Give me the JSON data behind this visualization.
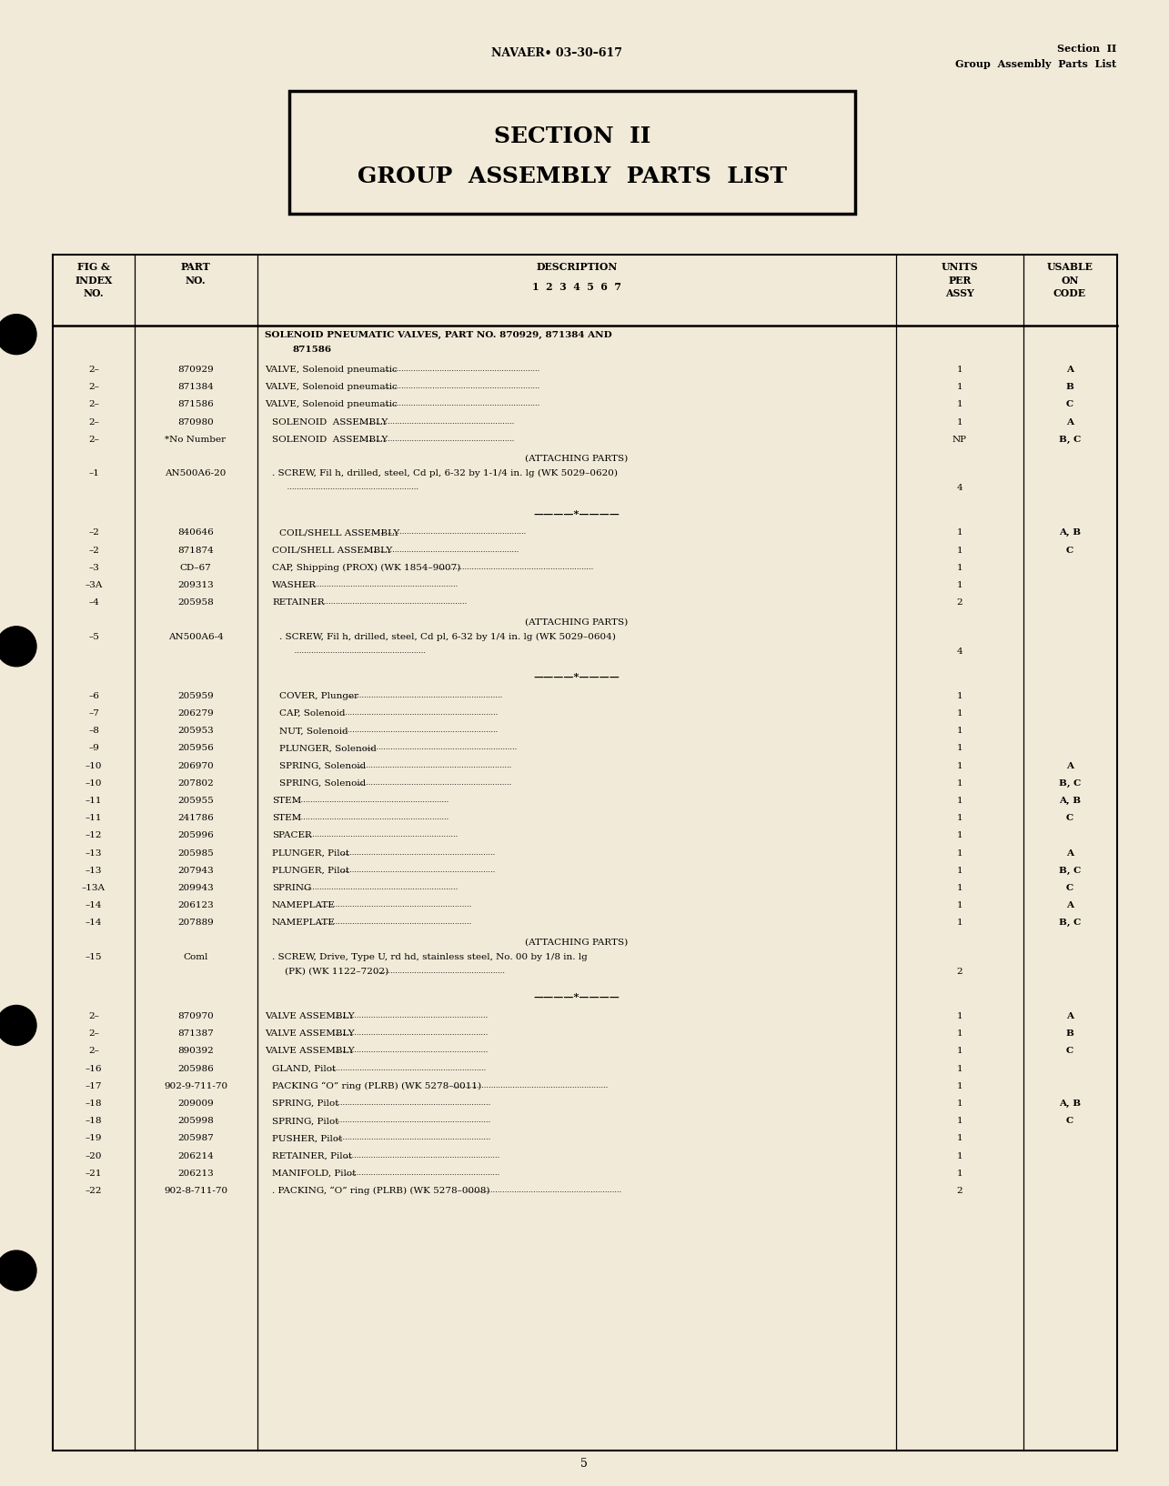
{
  "bg_color": "#f2ead8",
  "page_number": "5",
  "header_center": "NAVAER• 03–30–617",
  "header_right_line1": "Section  II",
  "header_right_line2": "Group  Assembly  Parts  List",
  "section_title_line1": "SECTION  II",
  "section_title_line2": "GROUP  ASSEMBLY  PARTS  LIST",
  "col_headers_fig": "FIG &\nINDEX\nNO.",
  "col_headers_part": "PART\nNO.",
  "col_headers_desc1": "DESCRIPTION",
  "col_headers_desc2": "1  2  3  4  5  6  7",
  "col_headers_units": "UNITS\nPER\nASSY",
  "col_headers_code": "USABLE\nON\nCODE",
  "intro_line1": "SOLENOID PNEUMATIC VALVES, PART NO. 870929, 871384 AND",
  "intro_line2": "871586",
  "rows": [
    {
      "fig": "2–",
      "part": "870929",
      "indent": 0,
      "desc": "VALVE, Solenoid pneumatic",
      "units": "1",
      "code": "A",
      "type": "data"
    },
    {
      "fig": "2–",
      "part": "871384",
      "indent": 0,
      "desc": "VALVE, Solenoid pneumatic",
      "units": "1",
      "code": "B",
      "type": "data"
    },
    {
      "fig": "2–",
      "part": "871586",
      "indent": 0,
      "desc": "VALVE, Solenoid pneumatic",
      "units": "1",
      "code": "C",
      "type": "data"
    },
    {
      "fig": "2–",
      "part": "870980",
      "indent": 1,
      "desc": "SOLENOID  ASSEMBLY",
      "units": "1",
      "code": "A",
      "type": "data"
    },
    {
      "fig": "2–",
      "part": "*No Number",
      "indent": 1,
      "desc": "SOLENOID  ASSEMBLY",
      "units": "NP",
      "code": "B, C",
      "type": "data"
    },
    {
      "fig": "",
      "part": "",
      "indent": 0,
      "desc": "(ATTACHING PARTS)",
      "units": "",
      "code": "",
      "type": "attaching"
    },
    {
      "fig": "–1",
      "part": "AN500A6-20",
      "indent": 1,
      "desc": ". SCREW, Fil h, drilled, steel, Cd pl, 6-32 by 1-1/4 in. lg (WK 5029–0620)",
      "units": "4",
      "code": "",
      "type": "multi"
    },
    {
      "fig": "",
      "part": "",
      "indent": 0,
      "desc": "",
      "units": "",
      "code": "",
      "type": "separator"
    },
    {
      "fig": "–2",
      "part": "840646",
      "indent": 2,
      "desc": "COIL/SHELL ASSEMBLY",
      "units": "1",
      "code": "A, B",
      "type": "data"
    },
    {
      "fig": "–2",
      "part": "871874",
      "indent": 1,
      "desc": "COIL/SHELL ASSEMBLY",
      "units": "1",
      "code": "C",
      "type": "data"
    },
    {
      "fig": "–3",
      "part": "CD–67",
      "indent": 1,
      "desc": "CAP, Shipping (PROX) (WK 1854–9007)",
      "units": "1",
      "code": "",
      "type": "data"
    },
    {
      "fig": "–3A",
      "part": "209313",
      "indent": 1,
      "desc": "WASHER",
      "units": "1",
      "code": "",
      "type": "data"
    },
    {
      "fig": "–4",
      "part": "205958",
      "indent": 1,
      "desc": "RETAINER",
      "units": "2",
      "code": "",
      "type": "data"
    },
    {
      "fig": "",
      "part": "",
      "indent": 0,
      "desc": "(ATTACHING PARTS)",
      "units": "",
      "code": "",
      "type": "attaching"
    },
    {
      "fig": "–5",
      "part": "AN500A6-4",
      "indent": 2,
      "desc": ". SCREW, Fil h, drilled, steel, Cd pl, 6-32 by 1/4 in. lg (WK 5029–0604)",
      "units": "4",
      "code": "",
      "type": "multi"
    },
    {
      "fig": "",
      "part": "",
      "indent": 0,
      "desc": "",
      "units": "",
      "code": "",
      "type": "separator"
    },
    {
      "fig": "–6",
      "part": "205959",
      "indent": 2,
      "desc": "COVER, Plunger",
      "units": "1",
      "code": "",
      "type": "data"
    },
    {
      "fig": "–7",
      "part": "206279",
      "indent": 2,
      "desc": "CAP, Solenoid",
      "units": "1",
      "code": "",
      "type": "data"
    },
    {
      "fig": "–8",
      "part": "205953",
      "indent": 2,
      "desc": "NUT, Solenoid",
      "units": "1",
      "code": "",
      "type": "data"
    },
    {
      "fig": "–9",
      "part": "205956",
      "indent": 2,
      "desc": "PLUNGER, Solenoid",
      "units": "1",
      "code": "",
      "type": "data"
    },
    {
      "fig": "–10",
      "part": "206970",
      "indent": 2,
      "desc": "SPRING, Solenoid",
      "units": "1",
      "code": "A",
      "type": "data"
    },
    {
      "fig": "–10",
      "part": "207802",
      "indent": 2,
      "desc": "SPRING, Solenoid",
      "units": "1",
      "code": "B, C",
      "type": "data"
    },
    {
      "fig": "–11",
      "part": "205955",
      "indent": 1,
      "desc": "STEM",
      "units": "1",
      "code": "A, B",
      "type": "data"
    },
    {
      "fig": "–11",
      "part": "241786",
      "indent": 1,
      "desc": "STEM",
      "units": "1",
      "code": "C",
      "type": "data"
    },
    {
      "fig": "–12",
      "part": "205996",
      "indent": 1,
      "desc": "SPACER",
      "units": "1",
      "code": "",
      "type": "data"
    },
    {
      "fig": "–13",
      "part": "205985",
      "indent": 1,
      "desc": "PLUNGER, Pilot",
      "units": "1",
      "code": "A",
      "type": "data"
    },
    {
      "fig": "–13",
      "part": "207943",
      "indent": 1,
      "desc": "PLUNGER, Pilot",
      "units": "1",
      "code": "B, C",
      "type": "data"
    },
    {
      "fig": "–13A",
      "part": "209943",
      "indent": 1,
      "desc": "SPRING",
      "units": "1",
      "code": "C",
      "type": "data"
    },
    {
      "fig": "–14",
      "part": "206123",
      "indent": 1,
      "desc": "NAMEPLATE",
      "units": "1",
      "code": "A",
      "type": "data"
    },
    {
      "fig": "–14",
      "part": "207889",
      "indent": 1,
      "desc": "NAMEPLATE",
      "units": "1",
      "code": "B, C",
      "type": "data"
    },
    {
      "fig": "",
      "part": "",
      "indent": 0,
      "desc": "(ATTACHING PARTS)",
      "units": "",
      "code": "",
      "type": "attaching"
    },
    {
      "fig": "–15",
      "part": "Coml",
      "indent": 1,
      "desc": ". SCREW, Drive, Type U, rd hd, stainless steel, No. 00 by 1/8 in. lg\n(PK) (WK 1122–7202)",
      "units": "2",
      "code": "",
      "type": "multi"
    },
    {
      "fig": "",
      "part": "",
      "indent": 0,
      "desc": "",
      "units": "",
      "code": "",
      "type": "separator"
    },
    {
      "fig": "2–",
      "part": "870970",
      "indent": 0,
      "desc": "VALVE ASSEMBLY",
      "units": "1",
      "code": "A",
      "type": "data"
    },
    {
      "fig": "2–",
      "part": "871387",
      "indent": 0,
      "desc": "VALVE ASSEMBLY",
      "units": "1",
      "code": "B",
      "type": "data"
    },
    {
      "fig": "2–",
      "part": "890392",
      "indent": 0,
      "desc": "VALVE ASSEMBLY",
      "units": "1",
      "code": "C",
      "type": "data"
    },
    {
      "fig": "–16",
      "part": "205986",
      "indent": 1,
      "desc": "GLAND, Pilot",
      "units": "1",
      "code": "",
      "type": "data"
    },
    {
      "fig": "–17",
      "part": "902-9-711-70",
      "indent": 1,
      "desc": "PACKING “O” ring (PLRB) (WK 5278–0011)",
      "units": "1",
      "code": "",
      "type": "data"
    },
    {
      "fig": "–18",
      "part": "209009",
      "indent": 1,
      "desc": "SPRING, Pilot",
      "units": "1",
      "code": "A, B",
      "type": "data"
    },
    {
      "fig": "–18",
      "part": "205998",
      "indent": 1,
      "desc": "SPRING, Pilot",
      "units": "1",
      "code": "C",
      "type": "data"
    },
    {
      "fig": "–19",
      "part": "205987",
      "indent": 1,
      "desc": "PUSHER, Pilot",
      "units": "1",
      "code": "",
      "type": "data"
    },
    {
      "fig": "–20",
      "part": "206214",
      "indent": 1,
      "desc": "RETAINER, Pilot",
      "units": "1",
      "code": "",
      "type": "data"
    },
    {
      "fig": "–21",
      "part": "206213",
      "indent": 1,
      "desc": "MANIFOLD, Pilot",
      "units": "1",
      "code": "",
      "type": "data"
    },
    {
      "fig": "–22",
      "part": "902-8-711-70",
      "indent": 1,
      "desc": ". PACKING, “O” ring (PLRB) (WK 5278–0008)",
      "units": "2",
      "code": "",
      "type": "data"
    }
  ]
}
